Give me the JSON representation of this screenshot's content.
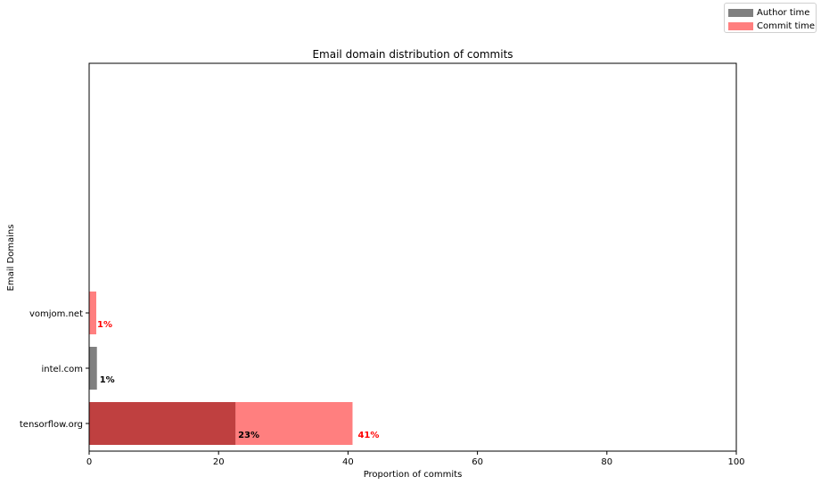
{
  "chart_data": {
    "type": "bar",
    "orientation": "horizontal",
    "title": "Email domain distribution of commits",
    "xlabel": "Proportion of commits",
    "ylabel": "Email Domains",
    "xlim": [
      0,
      100
    ],
    "xticks": [
      "0",
      "20",
      "40",
      "60",
      "80",
      "100"
    ],
    "categories": [
      "tensorflow.org",
      "intel.com",
      "vomjom.net"
    ],
    "series": [
      {
        "name": "Author time",
        "color": "#808080",
        "values": [
          22.6,
          1.2,
          0
        ],
        "labels": [
          "23%",
          "1%",
          ""
        ],
        "label_color": "#000000"
      },
      {
        "name": "Commit time",
        "color": "#ff7f7f",
        "values": [
          40.7,
          0,
          1.1
        ],
        "labels": [
          "41%",
          "",
          "1%"
        ],
        "label_color": "#ff0000"
      }
    ],
    "overlap_color": "#bf4040",
    "legend_position": "top-right",
    "grid": false
  }
}
